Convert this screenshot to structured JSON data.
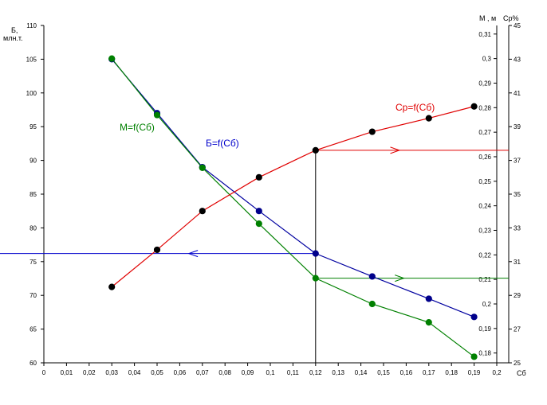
{
  "chart_data": {
    "type": "line",
    "x_axis": {
      "title": "Сб",
      "ticks": [
        "0",
        "0,01",
        "0,02",
        "0,03",
        "0,04",
        "0,05",
        "0,06",
        "0,07",
        "0,08",
        "0,09",
        "0,1",
        "0,11",
        "0,12",
        "0,13",
        "0,14",
        "0,15",
        "0,16",
        "0,17",
        "0,18",
        "0,19",
        "0,2"
      ],
      "range": [
        0,
        0.2
      ]
    },
    "y_left": {
      "title_line1": "Б,",
      "title_line2": "млн.т.",
      "ticks": [
        "60",
        "65",
        "70",
        "75",
        "80",
        "85",
        "90",
        "95",
        "100",
        "105",
        "110"
      ],
      "range": [
        60,
        110
      ]
    },
    "y_m": {
      "title": "М , м",
      "ticks": [
        "0,18",
        "0,19",
        "0,2",
        "0,21",
        "0,22",
        "0,23",
        "0,24",
        "0,25",
        "0,26",
        "0,27",
        "0,28",
        "0,29",
        "0,3",
        "0,31"
      ],
      "range": [
        0.176,
        0.3135
      ]
    },
    "y_cp": {
      "title": "Ср%",
      "ticks": [
        "25",
        "27",
        "29",
        "31",
        "33",
        "35",
        "37",
        "39",
        "41",
        "43",
        "45"
      ],
      "range": [
        25,
        45
      ]
    },
    "series": [
      {
        "name": "Б=f(Сб)",
        "axis": "left",
        "color": "#0000a0",
        "marker_color": "#00008b",
        "x": [
          0.03,
          0.05,
          0.07,
          0.095,
          0.12,
          0.145,
          0.17,
          0.19
        ],
        "y": [
          105,
          97,
          89,
          82.5,
          76.2,
          72.8,
          69.5,
          66.8
        ]
      },
      {
        "name": "М=f(Сб)",
        "axis": "m",
        "color": "#008000",
        "marker_color": "#008000",
        "x": [
          0.03,
          0.05,
          0.07,
          0.095,
          0.12,
          0.145,
          0.17,
          0.19
        ],
        "y": [
          0.3,
          0.277,
          0.2555,
          0.2327,
          0.2105,
          0.2,
          0.1925,
          0.1785
        ]
      },
      {
        "name": "Ср=f(Сб)",
        "axis": "cp",
        "color": "#e00000",
        "marker_color": "#000000",
        "x": [
          0.03,
          0.05,
          0.07,
          0.095,
          0.12,
          0.145,
          0.17,
          0.19
        ],
        "y": [
          29.5,
          31.7,
          34,
          36,
          37.6,
          38.7,
          39.5,
          40.2
        ]
      }
    ],
    "annotations": {
      "vertical_line_x": 0.12,
      "b_guide_value": 76.2,
      "m_guide_value": 0.2105,
      "cp_guide_value": 37.6
    }
  }
}
